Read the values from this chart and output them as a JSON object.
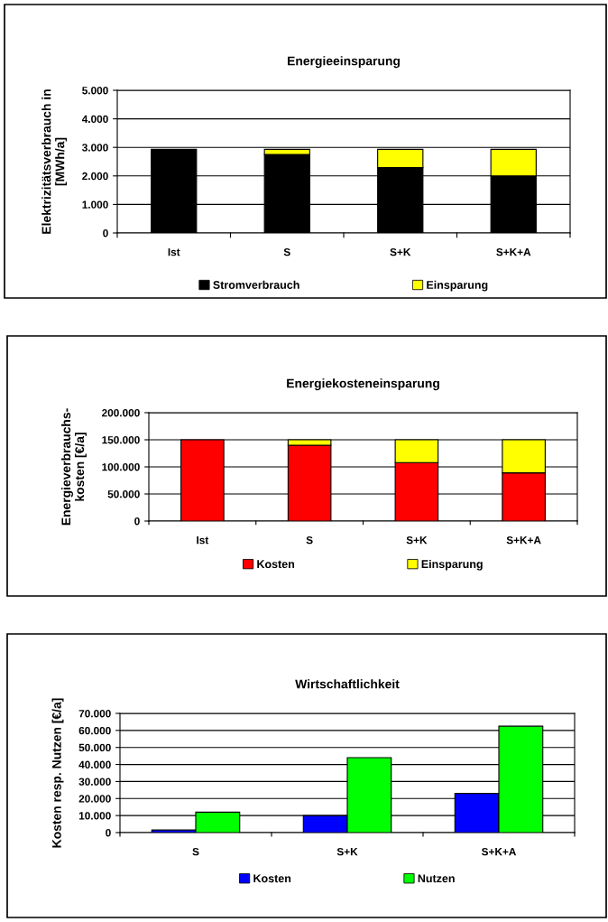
{
  "chart_data": [
    {
      "type": "bar",
      "title": "Energieeinsparung",
      "ylabel": "Elektrizitätsverbrauch in\n[MWh/a]",
      "stacked": true,
      "categories": [
        "Ist",
        "S",
        "S+K",
        "S+K+A"
      ],
      "series": [
        {
          "name": "Stromverbrauch",
          "color": "#000000",
          "values": [
            2930,
            2750,
            2290,
            2000
          ]
        },
        {
          "name": "Einsparung",
          "color": "#ffff00",
          "values": [
            null,
            180,
            640,
            930
          ]
        }
      ],
      "ylim": [
        0,
        5000
      ],
      "yticks": [
        {
          "value": 0,
          "label": "0"
        },
        {
          "value": 1000,
          "label": "1.000"
        },
        {
          "value": 2000,
          "label": "2.000"
        },
        {
          "value": 3000,
          "label": "3.000"
        },
        {
          "value": 4000,
          "label": "4.000"
        },
        {
          "value": 5000,
          "label": "5.000"
        }
      ],
      "grid": "y",
      "legend": "bottom"
    },
    {
      "type": "bar",
      "title": "Energiekosteneinsparung",
      "ylabel": "Energieverbrauchs-\nkosten [€/a]",
      "stacked": true,
      "categories": [
        "Ist",
        "S",
        "S+K",
        "S+K+A"
      ],
      "series": [
        {
          "name": "Kosten",
          "color": "#ff0000",
          "values": [
            150000,
            140000,
            108000,
            89000
          ]
        },
        {
          "name": "Einsparung",
          "color": "#ffff00",
          "values": [
            null,
            10000,
            42000,
            61000
          ]
        }
      ],
      "ylim": [
        0,
        200000
      ],
      "yticks": [
        {
          "value": 0,
          "label": "0"
        },
        {
          "value": 50000,
          "label": "50.000"
        },
        {
          "value": 100000,
          "label": "100.000"
        },
        {
          "value": 150000,
          "label": "150.000"
        },
        {
          "value": 200000,
          "label": "200.000"
        }
      ],
      "grid": "y",
      "legend": "bottom"
    },
    {
      "type": "bar",
      "title": "Wirtschaftlichkeit",
      "ylabel": "Kosten resp. Nutzen [€/a]",
      "stacked": false,
      "categories": [
        "S",
        "S+K",
        "S+K+A"
      ],
      "series": [
        {
          "name": "Kosten",
          "color": "#0000ff",
          "values": [
            1500,
            10000,
            23000
          ]
        },
        {
          "name": "Nutzen",
          "color": "#00ff00",
          "values": [
            12000,
            44000,
            62500
          ]
        }
      ],
      "ylim": [
        0,
        70000
      ],
      "yticks": [
        {
          "value": 0,
          "label": "0"
        },
        {
          "value": 10000,
          "label": "10.000"
        },
        {
          "value": 20000,
          "label": "20.000"
        },
        {
          "value": 30000,
          "label": "30.000"
        },
        {
          "value": 40000,
          "label": "40.000"
        },
        {
          "value": 50000,
          "label": "50.000"
        },
        {
          "value": 60000,
          "label": "60.000"
        },
        {
          "value": 70000,
          "label": "70.000"
        }
      ],
      "grid": "y",
      "legend": "bottom"
    }
  ]
}
